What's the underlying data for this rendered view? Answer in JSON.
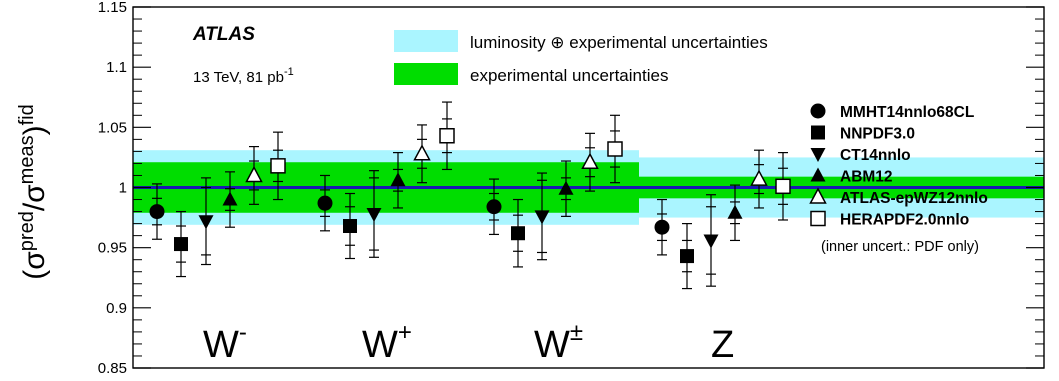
{
  "chart_data": {
    "type": "scatter",
    "ylabel": {
      "base": "(σ",
      "sup1": "pred",
      "mid": "/σ",
      "sup2": "meas",
      "close": ")",
      "sup3": "fid"
    },
    "ylim": [
      0.85,
      1.15
    ],
    "yticks": [
      "0.85",
      "0.9",
      "0.95",
      "1",
      "1.05",
      "1.1",
      "1.15"
    ],
    "experiment": "ATLAS",
    "energy": {
      "text": "13 TeV, 81 pb",
      "sup": "-1"
    },
    "bands": [
      {
        "label": "luminosity ⊕ experimental uncertainties",
        "color": "#aaf5ff"
      },
      {
        "label": "experimental uncertainties",
        "color": "#00dd00"
      }
    ],
    "categories": [
      {
        "base": "W",
        "sup": "-",
        "exp_unc": 0.021,
        "lumi_unc": 0.031
      },
      {
        "base": "W",
        "sup": "+",
        "exp_unc": 0.021,
        "lumi_unc": 0.031
      },
      {
        "base": "W",
        "sup": "±",
        "exp_unc": 0.021,
        "lumi_unc": 0.031
      },
      {
        "base": "Z",
        "sup": "",
        "exp_unc": 0.009,
        "lumi_unc": 0.025
      }
    ],
    "central_line": 1.0,
    "central_line_color": "#1a1ab0",
    "series": [
      {
        "name": "MMHT14nnlo68CL",
        "marker": "circle",
        "values": [
          0.98,
          0.987,
          0.984,
          0.967
        ],
        "pdf_err": [
          0.011,
          0.011,
          0.011,
          0.011
        ],
        "tot_err": [
          0.023,
          0.023,
          0.023,
          0.023
        ]
      },
      {
        "name": "NNPDF3.0",
        "marker": "square",
        "values": [
          0.953,
          0.968,
          0.962,
          0.943
        ],
        "pdf_err": [
          0.015,
          0.016,
          0.015,
          0.013
        ],
        "tot_err": [
          0.027,
          0.027,
          0.028,
          0.027
        ]
      },
      {
        "name": "CT14nnlo",
        "marker": "triangle-down",
        "values": [
          0.972,
          0.978,
          0.976,
          0.956
        ],
        "pdf_err": [
          0.028,
          0.03,
          0.03,
          0.028
        ],
        "tot_err": [
          0.036,
          0.036,
          0.036,
          0.038
        ]
      },
      {
        "name": "ABM12",
        "marker": "triangle-up",
        "values": [
          0.99,
          1.006,
          0.999,
          0.979
        ],
        "pdf_err": [
          0.009,
          0.009,
          0.009,
          0.009
        ],
        "tot_err": [
          0.023,
          0.023,
          0.023,
          0.023
        ]
      },
      {
        "name": "ATLAS-epWZ12nnlo",
        "marker": "triangle-up-open",
        "values": [
          1.01,
          1.028,
          1.021,
          1.007
        ],
        "pdf_err": [
          0.012,
          0.012,
          0.012,
          0.012
        ],
        "tot_err": [
          0.024,
          0.024,
          0.024,
          0.024
        ]
      },
      {
        "name": "HERAPDF2.0nnlo",
        "marker": "square-open",
        "values": [
          1.018,
          1.043,
          1.032,
          1.001
        ],
        "pdf_err": [
          0.013,
          0.014,
          0.015,
          0.015
        ],
        "tot_err": [
          0.028,
          0.028,
          0.028,
          0.028
        ]
      }
    ],
    "note": "(inner uncert.: PDF only)",
    "grid": false,
    "legend_position": "right"
  }
}
